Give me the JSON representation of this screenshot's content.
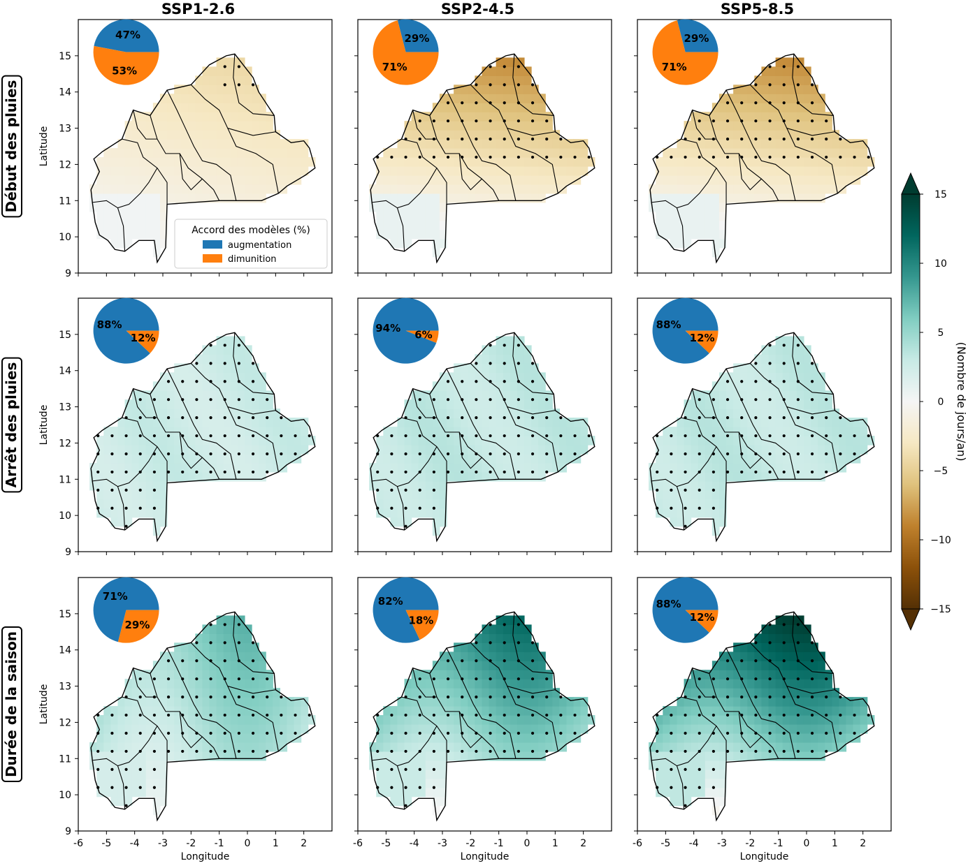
{
  "chart_data": {
    "type": "heatmap",
    "columns": [
      "SSP1-2.6",
      "SSP2-4.5",
      "SSP5-8.5"
    ],
    "rows": [
      "Début des pluies",
      "Arrêt des pluies",
      "Durée de la saison"
    ],
    "xlabel": "Longitude",
    "ylabel": "Latitude",
    "xlim": [
      -6,
      3
    ],
    "ylim": [
      9,
      16
    ],
    "xticks": [
      -6,
      -5,
      -4,
      -3,
      -2,
      -1,
      0,
      1,
      2
    ],
    "yticks": [
      9,
      10,
      11,
      12,
      13,
      14,
      15
    ],
    "colorbar": {
      "label": "(Nombre de jours/an)",
      "range": [
        -15,
        15
      ],
      "ticks": [
        -15,
        -10,
        -5,
        0,
        5,
        10,
        15
      ],
      "colormap": "BrBG",
      "extend": "both"
    },
    "legend": {
      "title": "Accord des modèles (%)",
      "entries": [
        {
          "label": "augmentation",
          "color": "#1f77b4"
        },
        {
          "label": "dimunition",
          "color": "#ff7f0e"
        }
      ]
    },
    "panels": [
      {
        "row": "Début des pluies",
        "column": "SSP1-2.6",
        "mean_change": -1.2,
        "augmentation_pct": 47,
        "dimunition_pct": 53
      },
      {
        "row": "Début des pluies",
        "column": "SSP2-4.5",
        "mean_change": -2.5,
        "augmentation_pct": 29,
        "dimunition_pct": 71
      },
      {
        "row": "Début des pluies",
        "column": "SSP5-8.5",
        "mean_change": -2.5,
        "augmentation_pct": 29,
        "dimunition_pct": 71
      },
      {
        "row": "Arrêt des pluies",
        "column": "SSP1-2.6",
        "mean_change": 2.5,
        "augmentation_pct": 88,
        "dimunition_pct": 12
      },
      {
        "row": "Arrêt des pluies",
        "column": "SSP2-4.5",
        "mean_change": 3.0,
        "augmentation_pct": 94,
        "dimunition_pct": 6
      },
      {
        "row": "Arrêt des pluies",
        "column": "SSP5-8.5",
        "mean_change": 3.0,
        "augmentation_pct": 88,
        "dimunition_pct": 12
      },
      {
        "row": "Durée de la saison",
        "column": "SSP1-2.6",
        "mean_change": 4.0,
        "augmentation_pct": 71,
        "dimunition_pct": 29
      },
      {
        "row": "Durée de la saison",
        "column": "SSP2-4.5",
        "mean_change": 6.0,
        "augmentation_pct": 82,
        "dimunition_pct": 18
      },
      {
        "row": "Durée de la saison",
        "column": "SSP5-8.5",
        "mean_change": 7.0,
        "augmentation_pct": 88,
        "dimunition_pct": 12
      }
    ]
  }
}
